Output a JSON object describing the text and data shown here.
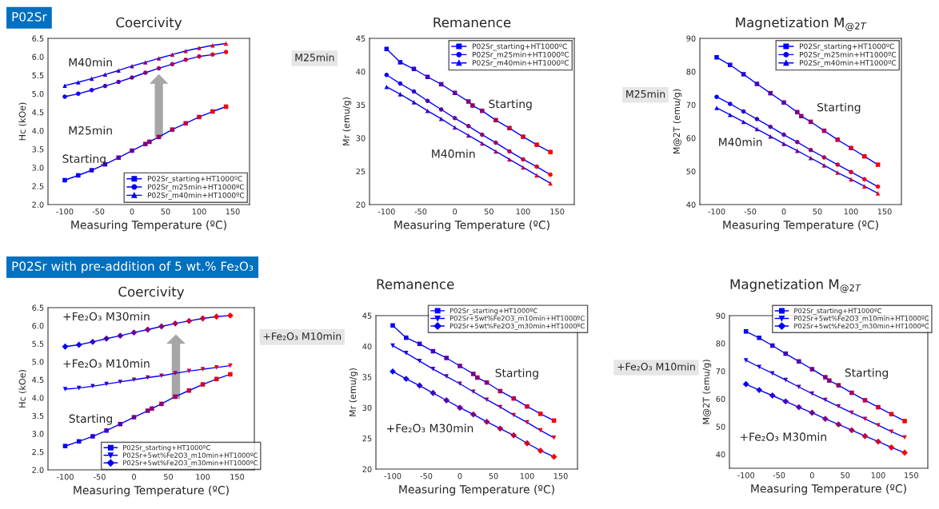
{
  "chart_data": [
    {
      "type": "line",
      "title": "Coercivity",
      "xlabel": "Measuring Temperature (ºC)",
      "ylabel": "Hc (kOe)",
      "x": [
        -100,
        -80,
        -60,
        -40,
        -20,
        0,
        20,
        40,
        60,
        80,
        100,
        120,
        140
      ],
      "xlim": [
        -125,
        175
      ],
      "xticks": [
        -100,
        -50,
        0,
        50,
        100,
        150
      ],
      "ylim": [
        2.0,
        6.5
      ],
      "yticks": [
        {
          "value": 2.0,
          "label": "2.0"
        },
        {
          "value": 2.5,
          "label": "2.5"
        },
        {
          "value": 3.0,
          "label": "3.0"
        },
        {
          "value": 3.5,
          "label": "3.5"
        },
        {
          "value": 4.0,
          "label": "4.0"
        },
        {
          "value": 4.5,
          "label": "4.5"
        },
        {
          "value": 5.0,
          "label": "5.0"
        },
        {
          "value": 5.5,
          "label": "5.5"
        },
        {
          "value": 6.0,
          "label": "6.0"
        },
        {
          "value": 6.5,
          "label": "6.5"
        }
      ],
      "legend": "bottom right",
      "grid": false,
      "line_style": "solid",
      "annotations": [
        "P02Sr",
        "M40min",
        "M25min",
        "Starting"
      ],
      "series": [
        {
          "name": "P02Sr_starting+HT1000ºC",
          "color": "#0000ff",
          "marker": "square",
          "x": [
            -100,
            -80,
            -60,
            -40,
            -20,
            0,
            20,
            26,
            40,
            60,
            80,
            100,
            120,
            140
          ],
          "values": [
            2.66,
            2.79,
            2.93,
            3.09,
            3.27,
            3.46,
            3.64,
            3.7,
            3.83,
            4.03,
            4.2,
            4.37,
            4.52,
            4.65
          ],
          "colors": [
            "#0000ff",
            "#1500ea",
            "#2b00d4",
            "#4000bf",
            "#5500aa",
            "#6a0095",
            "#800080",
            "#8a0075",
            "#95006a",
            "#aa0055",
            "#bf0040",
            "#d4002b",
            "#ea0015",
            "#ff0000"
          ]
        },
        {
          "name": "P02Sr_m25min+HT1000ºC",
          "color": "#0000ff",
          "marker": "circle",
          "values": [
            4.92,
            5.0,
            5.1,
            5.21,
            5.32,
            5.44,
            5.57,
            5.69,
            5.8,
            5.92,
            6.01,
            6.06,
            6.13
          ],
          "colors": [
            "#0000ff",
            "#1500ea",
            "#2b00d4",
            "#4000bf",
            "#5500aa",
            "#6a0095",
            "#800080",
            "#95006a",
            "#aa0055",
            "#bf0040",
            "#d4002b",
            "#ea0015",
            "#ff0000"
          ]
        },
        {
          "name": "P02Sr_m40min+HT1000ºC",
          "color": "#0000ff",
          "marker": "triangle",
          "values": [
            5.22,
            5.31,
            5.41,
            5.52,
            5.63,
            5.75,
            5.85,
            5.96,
            6.06,
            6.16,
            6.24,
            6.31,
            6.36
          ],
          "colors": [
            "#0000ff",
            "#1500ea",
            "#2b00d4",
            "#4000bf",
            "#5500aa",
            "#6a0095",
            "#800080",
            "#95006a",
            "#aa0055",
            "#bf0040",
            "#d4002b",
            "#ea0015",
            "#ff0000"
          ]
        }
      ]
    },
    {
      "type": "line",
      "title": "Remanence",
      "xlabel": "Measuring Temperature (ºC)",
      "ylabel": "Mr (emu/g)",
      "x": [
        -100,
        -80,
        -60,
        -40,
        -20,
        0,
        20,
        40,
        60,
        80,
        100,
        120,
        140
      ],
      "xlim": [
        -125,
        175
      ],
      "xticks": [
        -100,
        -50,
        0,
        50,
        100,
        150
      ],
      "ylim": [
        20,
        45
      ],
      "yticks": [
        20,
        25,
        30,
        35,
        40,
        45
      ],
      "legend": "top right",
      "grid": false,
      "line_style": "solid",
      "annotations": [
        "M25min",
        "Starting",
        "M40min"
      ],
      "series": [
        {
          "name": "P02Sr_starting+HT1000ºC",
          "color": "#0000ff",
          "marker": "square",
          "x": [
            -100,
            -80,
            -60,
            -40,
            -20,
            0,
            20,
            26,
            40,
            60,
            80,
            100,
            120,
            140
          ],
          "values": [
            43.4,
            41.4,
            40.4,
            39.2,
            38.1,
            36.8,
            35.5,
            34.9,
            34.1,
            32.7,
            31.5,
            30.2,
            29.0,
            27.9
          ],
          "colors": [
            "#0000ff",
            "#1500ea",
            "#2b00d4",
            "#4000bf",
            "#5500aa",
            "#6a0095",
            "#800080",
            "#8a0075",
            "#95006a",
            "#aa0055",
            "#bf0040",
            "#d4002b",
            "#ea0015",
            "#ff0000"
          ]
        },
        {
          "name": "P02Sr_m25min+HT1000ºC",
          "color": "#0000ff",
          "marker": "circle",
          "values": [
            39.5,
            38.2,
            37.0,
            35.6,
            34.3,
            33.0,
            31.8,
            30.5,
            29.3,
            28.0,
            26.8,
            25.7,
            24.5
          ],
          "colors": [
            "#0000ff",
            "#1500ea",
            "#2b00d4",
            "#4000bf",
            "#5500aa",
            "#6a0095",
            "#800080",
            "#95006a",
            "#aa0055",
            "#bf0040",
            "#d4002b",
            "#ea0015",
            "#ff0000"
          ]
        },
        {
          "name": "P02Sr_m40min+HT1000ºC",
          "color": "#0000ff",
          "marker": "triangle",
          "values": [
            37.7,
            36.6,
            35.4,
            34.1,
            32.9,
            31.6,
            30.4,
            29.2,
            28.0,
            26.8,
            25.6,
            24.4,
            23.2
          ],
          "colors": [
            "#0000ff",
            "#1500ea",
            "#2b00d4",
            "#4000bf",
            "#5500aa",
            "#6a0095",
            "#800080",
            "#95006a",
            "#aa0055",
            "#bf0040",
            "#d4002b",
            "#ea0015",
            "#ff0000"
          ]
        }
      ]
    },
    {
      "type": "line",
      "title": "Magnetization M$_{@2T}$",
      "xlabel": "Measuring Temperature (ºC)",
      "ylabel": "M@2T (emu/g)",
      "x": [
        -100,
        -80,
        -60,
        -40,
        -20,
        0,
        20,
        40,
        60,
        80,
        100,
        120,
        140
      ],
      "xlim": [
        -125,
        175
      ],
      "xticks": [
        -100,
        -50,
        0,
        50,
        100,
        150
      ],
      "ylim": [
        40,
        90
      ],
      "yticks": [
        40,
        50,
        60,
        70,
        80,
        90
      ],
      "legend": "top right",
      "grid": false,
      "line_style": "solid",
      "annotations": [
        "M25min",
        "Starting",
        "M40min"
      ],
      "series": [
        {
          "name": "P02Sr_starting+HT1000ºC",
          "color": "#0000ff",
          "marker": "square",
          "x": [
            -100,
            -80,
            -60,
            -40,
            -20,
            0,
            20,
            26,
            40,
            60,
            80,
            100,
            120,
            140
          ],
          "values": [
            84.3,
            82.0,
            79.2,
            76.3,
            73.5,
            70.7,
            67.8,
            66.6,
            64.9,
            62.2,
            59.5,
            57.0,
            54.5,
            52.0
          ],
          "colors": [
            "#0000ff",
            "#1500ea",
            "#2b00d4",
            "#4000bf",
            "#5500aa",
            "#6a0095",
            "#800080",
            "#8a0075",
            "#95006a",
            "#aa0055",
            "#bf0040",
            "#d4002b",
            "#ea0015",
            "#ff0000"
          ]
        },
        {
          "name": "P02Sr_m25min+HT1000ºC",
          "color": "#0000ff",
          "marker": "circle",
          "values": [
            72.4,
            70.3,
            68.0,
            65.7,
            63.4,
            61.0,
            58.8,
            56.4,
            54.2,
            52.0,
            49.8,
            47.6,
            45.4
          ],
          "colors": [
            "#0000ff",
            "#1500ea",
            "#2b00d4",
            "#4000bf",
            "#5500aa",
            "#6a0095",
            "#800080",
            "#95006a",
            "#aa0055",
            "#bf0040",
            "#d4002b",
            "#ea0015",
            "#ff0000"
          ]
        },
        {
          "name": "P02Sr_m40min+HT1000ºC",
          "color": "#0000ff",
          "marker": "triangle",
          "values": [
            69.1,
            67.0,
            64.9,
            62.7,
            60.5,
            58.3,
            56.2,
            54.0,
            51.8,
            49.6,
            47.6,
            45.5,
            43.4
          ],
          "colors": [
            "#0000ff",
            "#1500ea",
            "#2b00d4",
            "#4000bf",
            "#5500aa",
            "#6a0095",
            "#800080",
            "#95006a",
            "#aa0055",
            "#bf0040",
            "#d4002b",
            "#ea0015",
            "#ff0000"
          ]
        }
      ]
    },
    {
      "type": "line",
      "title": "Coercivity",
      "xlabel": "Measuring Temperature (ºC)",
      "ylabel": "Hc (kOe)",
      "x": [
        -100,
        -80,
        -60,
        -40,
        -20,
        0,
        20,
        40,
        60,
        80,
        100,
        120,
        140
      ],
      "xlim": [
        -125,
        175
      ],
      "xticks": [
        -100,
        -50,
        0,
        50,
        100,
        150
      ],
      "ylim": [
        2.0,
        6.5
      ],
      "yticks": [
        {
          "value": 2.0,
          "label": "2.0"
        },
        {
          "value": 2.5,
          "label": "2.5"
        },
        {
          "value": 3.0,
          "label": "3.0"
        },
        {
          "value": 3.5,
          "label": "3.5"
        },
        {
          "value": 4.0,
          "label": "4.0"
        },
        {
          "value": 4.5,
          "label": "4.5"
        },
        {
          "value": 5.0,
          "label": "5.0"
        },
        {
          "value": 5.5,
          "label": "5.5"
        },
        {
          "value": 6.0,
          "label": "6.0"
        },
        {
          "value": 6.5,
          "label": "6.5"
        }
      ],
      "legend": "bottom right",
      "grid": false,
      "line_style": "solid",
      "annotations": [
        "P02Sr with pre-addition of 5 wt.% Fe₂O₃",
        "+Fe₂O₃ M30min",
        "+Fe₂O₃ M10min",
        "Starting"
      ],
      "series": [
        {
          "name": "P02Sr_starting+HT1000ºC",
          "color": "#0000ff",
          "marker": "square",
          "x": [
            -100,
            -80,
            -60,
            -40,
            -20,
            0,
            20,
            26,
            40,
            60,
            80,
            100,
            120,
            140
          ],
          "values": [
            2.66,
            2.79,
            2.93,
            3.09,
            3.27,
            3.46,
            3.64,
            3.7,
            3.83,
            4.03,
            4.2,
            4.37,
            4.52,
            4.65
          ],
          "colors": [
            "#0000ff",
            "#1500ea",
            "#2b00d4",
            "#4000bf",
            "#5500aa",
            "#6a0095",
            "#800080",
            "#8a0075",
            "#95006a",
            "#aa0055",
            "#bf0040",
            "#d4002b",
            "#ea0015",
            "#ff0000"
          ]
        },
        {
          "name": "P02Sr+5wt%Fe2O3_m10min+HT1000ºC",
          "color": "#0000ff",
          "marker": "triangle_down",
          "values": [
            4.24,
            4.27,
            4.32,
            4.38,
            4.44,
            4.5,
            4.56,
            4.61,
            4.68,
            4.74,
            4.79,
            4.84,
            4.89
          ],
          "colors": [
            "#0000ff",
            "#1500ea",
            "#2b00d4",
            "#4000bf",
            "#5500aa",
            "#6a0095",
            "#800080",
            "#95006a",
            "#aa0055",
            "#bf0040",
            "#d4002b",
            "#ea0015",
            "#ff0000"
          ]
        },
        {
          "name": "P02Sr+5wt%Fe2O3_m30min+HT1000ºC",
          "color": "#0000ff",
          "marker": "diamond",
          "values": [
            5.42,
            5.47,
            5.55,
            5.64,
            5.72,
            5.81,
            5.89,
            5.98,
            6.06,
            6.13,
            6.2,
            6.25,
            6.28
          ],
          "colors": [
            "#0000ff",
            "#1500ea",
            "#2b00d4",
            "#4000bf",
            "#5500aa",
            "#6a0095",
            "#800080",
            "#95006a",
            "#aa0055",
            "#bf0040",
            "#d4002b",
            "#ea0015",
            "#ff0000"
          ]
        }
      ]
    },
    {
      "type": "line",
      "title": "Remanence",
      "xlabel": "Measuring Temperature (ºC)",
      "ylabel": "Mr (emu/g)",
      "x": [
        -100,
        -80,
        -60,
        -40,
        -20,
        0,
        20,
        40,
        60,
        80,
        100,
        120,
        140
      ],
      "xlim": [
        -125,
        175
      ],
      "xticks": [
        -100,
        -50,
        0,
        50,
        100,
        150
      ],
      "ylim": [
        20,
        45
      ],
      "yticks": [
        20,
        25,
        30,
        35,
        40,
        45
      ],
      "legend": "top right",
      "grid": false,
      "line_style": "solid",
      "annotations": [
        "+Fe₂O₃ M10min",
        "Starting",
        "+Fe₂O₃ M30min"
      ],
      "series": [
        {
          "name": "P02Sr_starting+HT1000ºC",
          "color": "#0000ff",
          "marker": "square",
          "x": [
            -100,
            -80,
            -60,
            -40,
            -20,
            0,
            20,
            26,
            40,
            60,
            80,
            100,
            120,
            140
          ],
          "values": [
            43.4,
            41.4,
            40.4,
            39.2,
            38.1,
            36.8,
            35.5,
            34.9,
            34.1,
            32.7,
            31.5,
            30.2,
            29.0,
            27.9
          ],
          "colors": [
            "#0000ff",
            "#1500ea",
            "#2b00d4",
            "#4000bf",
            "#5500aa",
            "#6a0095",
            "#800080",
            "#8a0075",
            "#95006a",
            "#aa0055",
            "#bf0040",
            "#d4002b",
            "#ea0015",
            "#ff0000"
          ]
        },
        {
          "name": "P02Sr+5wt%Fe2O3_m10min+HT1000ºC",
          "color": "#0000ff",
          "marker": "triangle_down",
          "values": [
            40.1,
            38.9,
            37.6,
            36.3,
            35.1,
            33.9,
            32.6,
            31.3,
            30.1,
            28.8,
            27.6,
            26.3,
            25.1
          ],
          "colors": [
            "#0000ff",
            "#1500ea",
            "#2b00d4",
            "#4000bf",
            "#5500aa",
            "#6a0095",
            "#800080",
            "#95006a",
            "#aa0055",
            "#bf0040",
            "#d4002b",
            "#ea0015",
            "#ff0000"
          ]
        },
        {
          "name": "P02Sr+5wt%Fe2O3_m30min+HT1000ºC",
          "color": "#0000ff",
          "marker": "diamond",
          "values": [
            35.9,
            34.7,
            33.6,
            32.4,
            31.2,
            30.0,
            28.9,
            27.7,
            26.6,
            25.5,
            24.2,
            23.0,
            22.0
          ],
          "colors": [
            "#0000ff",
            "#1500ea",
            "#2b00d4",
            "#4000bf",
            "#5500aa",
            "#6a0095",
            "#800080",
            "#95006a",
            "#aa0055",
            "#bf0040",
            "#d4002b",
            "#ea0015",
            "#ff0000"
          ]
        }
      ]
    },
    {
      "type": "line",
      "title": "Magnetization M$_{@2T}$",
      "xlabel": "Measuring Temperature (ºC)",
      "ylabel": "M@2T (emu/g)",
      "x": [
        -100,
        -80,
        -60,
        -40,
        -20,
        0,
        20,
        40,
        60,
        80,
        100,
        120,
        140
      ],
      "xlim": [
        -125,
        175
      ],
      "xticks": [
        -100,
        -50,
        0,
        50,
        100,
        150
      ],
      "ylim": [
        35,
        90
      ],
      "yticks": [
        40,
        50,
        60,
        70,
        80,
        90
      ],
      "legend": "top right",
      "grid": false,
      "line_style": "solid",
      "annotations": [
        "+Fe₂O₃ M10min",
        "Starting",
        "+Fe₂O₃ M30min"
      ],
      "series": [
        {
          "name": "P02Sr_starting+HT1000ºC",
          "color": "#0000ff",
          "marker": "square",
          "x": [
            -100,
            -80,
            -60,
            -40,
            -20,
            0,
            20,
            26,
            40,
            60,
            80,
            100,
            120,
            140
          ],
          "values": [
            84.3,
            82.0,
            79.2,
            76.3,
            73.5,
            70.7,
            67.8,
            66.6,
            64.9,
            62.2,
            59.5,
            57.0,
            54.5,
            52.0
          ],
          "colors": [
            "#0000ff",
            "#1500ea",
            "#2b00d4",
            "#4000bf",
            "#5500aa",
            "#6a0095",
            "#800080",
            "#8a0075",
            "#95006a",
            "#aa0055",
            "#bf0040",
            "#d4002b",
            "#ea0015",
            "#ff0000"
          ]
        },
        {
          "name": "P02Sr+5wt%Fe2O3_m10min+HT1000ºC",
          "color": "#0000ff",
          "marker": "triangle_down",
          "values": [
            73.9,
            71.5,
            69.2,
            66.8,
            64.3,
            61.9,
            59.6,
            57.3,
            55.0,
            52.8,
            50.5,
            48.2,
            46.1
          ],
          "colors": [
            "#0000ff",
            "#1500ea",
            "#2b00d4",
            "#4000bf",
            "#5500aa",
            "#6a0095",
            "#800080",
            "#95006a",
            "#aa0055",
            "#bf0040",
            "#d4002b",
            "#ea0015",
            "#ff0000"
          ]
        },
        {
          "name": "P02Sr+5wt%Fe2O3_m30min+HT1000ºC",
          "color": "#0000ff",
          "marker": "diamond",
          "values": [
            65.3,
            63.2,
            61.2,
            59.1,
            57.0,
            55.0,
            52.8,
            50.8,
            48.7,
            46.6,
            44.6,
            42.5,
            40.6
          ],
          "colors": [
            "#0000ff",
            "#1500ea",
            "#2b00d4",
            "#4000bf",
            "#5500aa",
            "#6a0095",
            "#800080",
            "#95006a",
            "#aa0055",
            "#bf0040",
            "#d4002b",
            "#ea0015",
            "#ff0000"
          ]
        }
      ]
    }
  ]
}
